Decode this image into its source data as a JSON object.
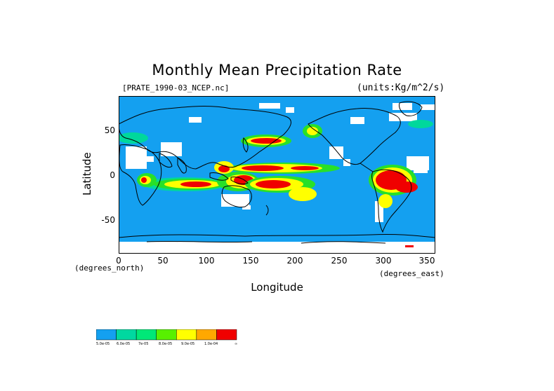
{
  "title": "Monthly Mean Precipitation Rate",
  "file_label": "[PRATE_1990-03_NCEP.nc]",
  "units_label": "(units:Kg/m^2/s)",
  "y_axis": {
    "label": "Latitude",
    "ticks": [
      "50",
      "0",
      "-50"
    ]
  },
  "x_axis": {
    "label": "Longitude",
    "ticks": [
      "0",
      "50",
      "100",
      "150",
      "200",
      "250",
      "300",
      "350"
    ],
    "unit_left": "(degrees_north)",
    "unit_right": "(degrees_east)"
  },
  "colors": {
    "ocean_base": "#14a0f0",
    "missing": "#ffffff",
    "level_2": "#00d89c",
    "level_3": "#28e028",
    "level_4": "#ffff00",
    "level_5": "#ff9c00",
    "level_6": "#f00000",
    "coast": "#000000"
  },
  "colorbar": {
    "colors": [
      "#14a0f0",
      "#00d8a0",
      "#00e878",
      "#58f000",
      "#ffff00",
      "#ffa800",
      "#f00000"
    ],
    "labels": [
      "5.0e-05",
      "6.0e-05",
      "7e-05",
      "8.0e-05",
      "9.0e-05",
      "1.0e-04",
      "∞"
    ]
  }
}
